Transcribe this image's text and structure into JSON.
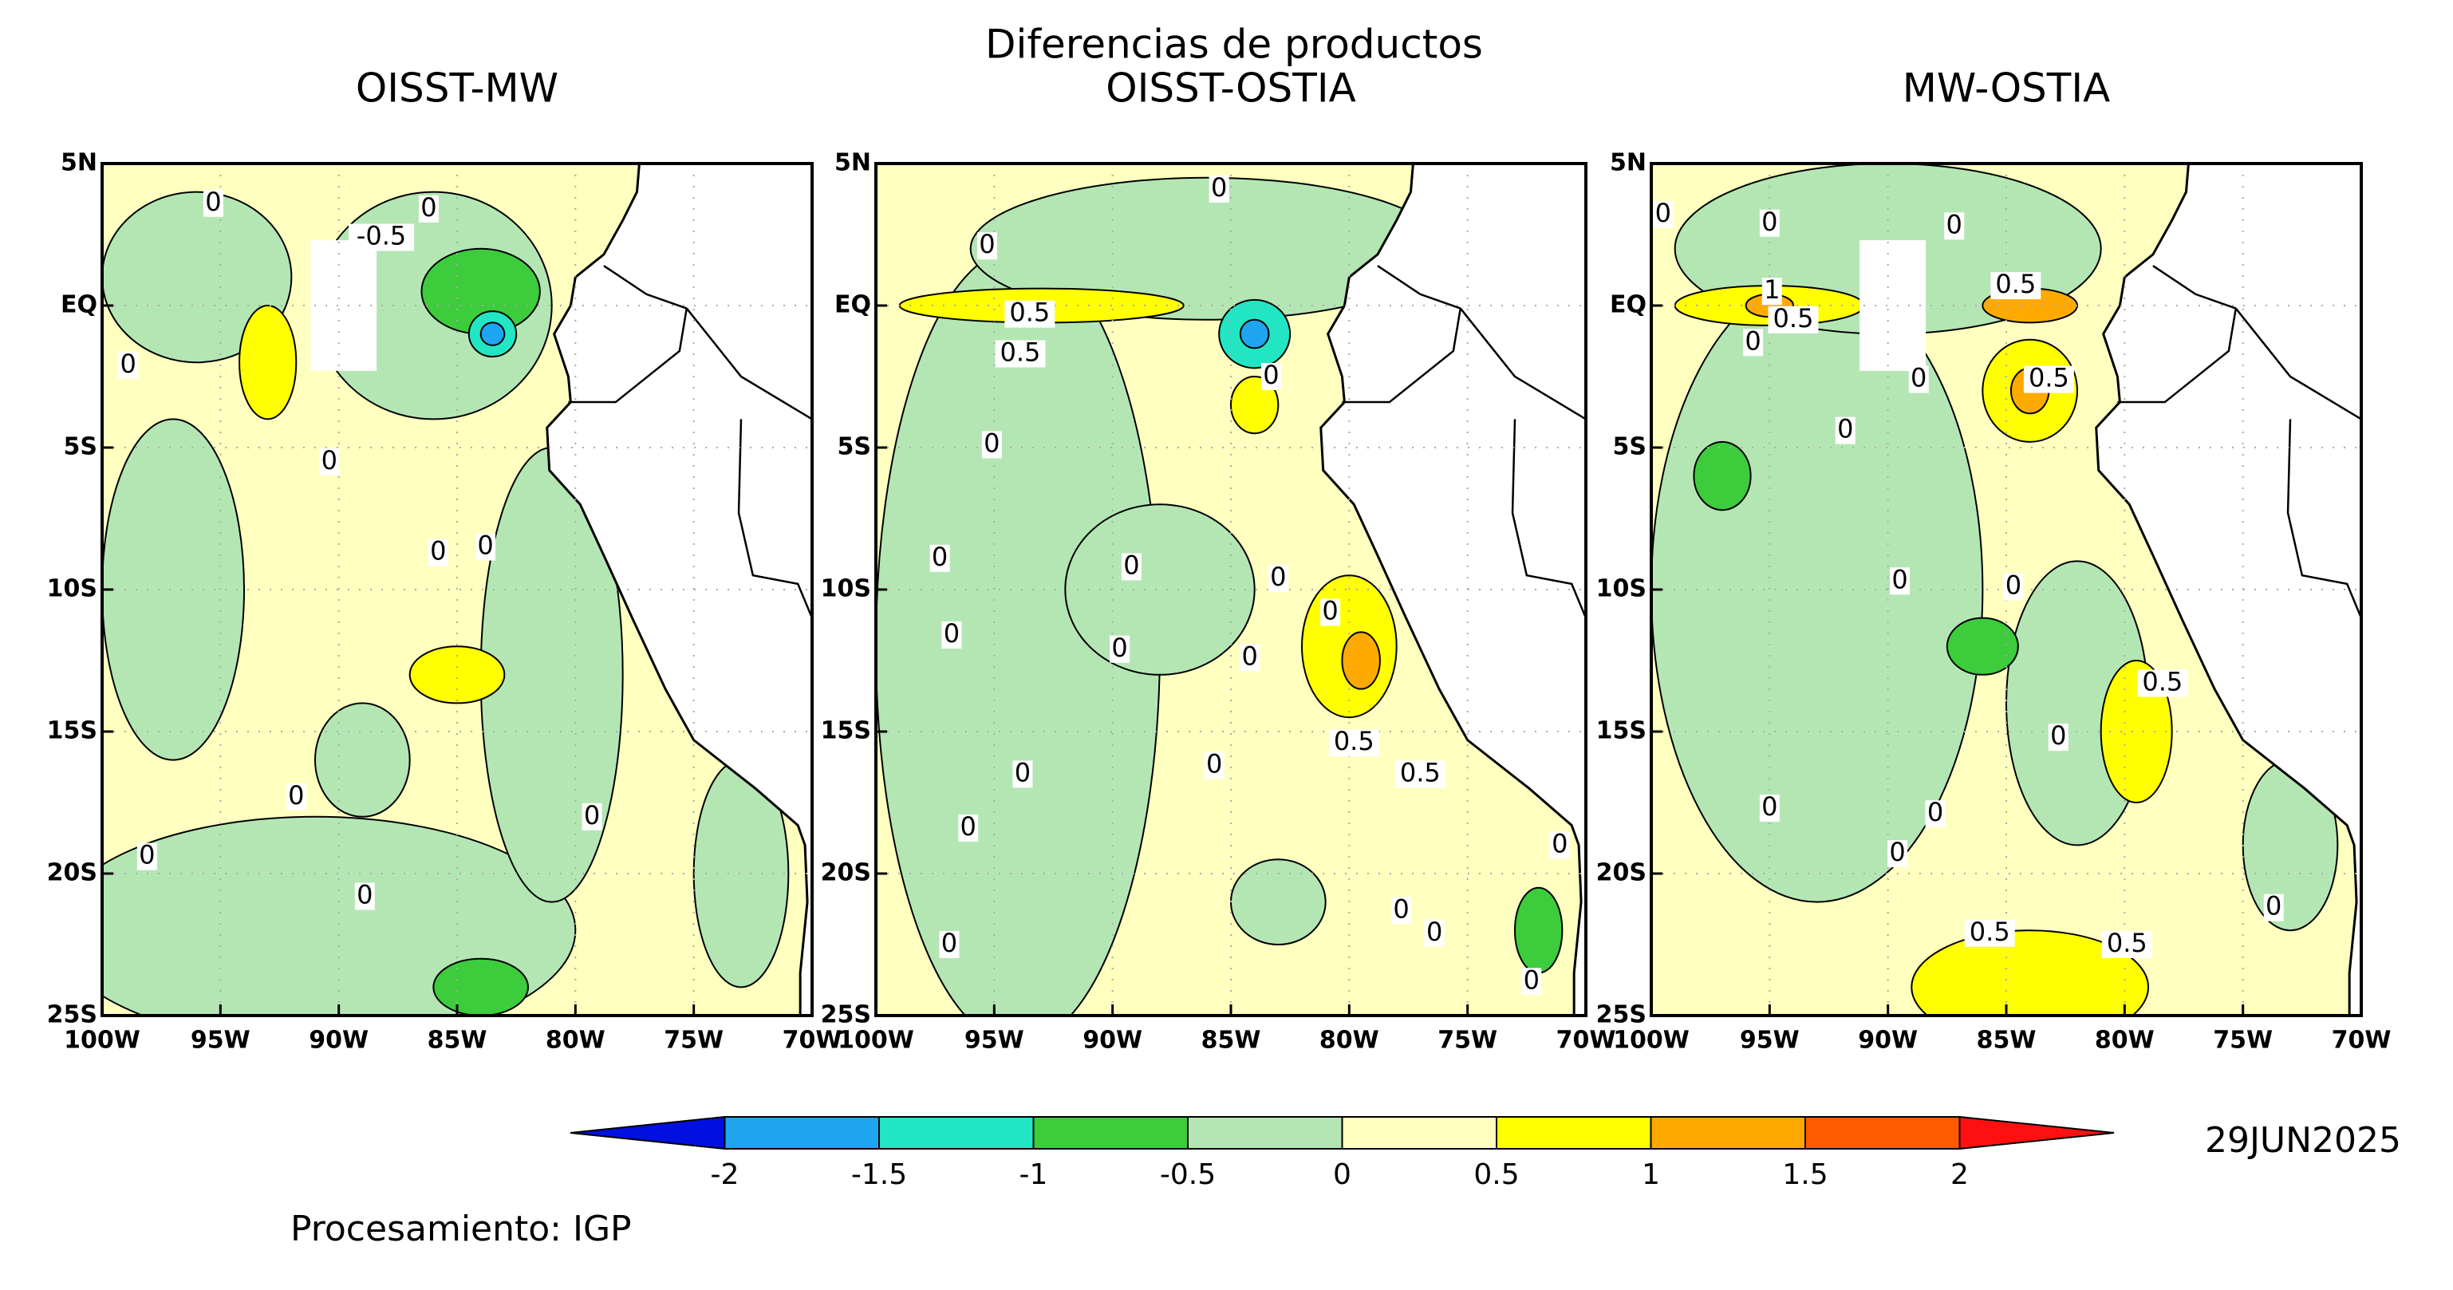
{
  "title": "Diferencias de productos",
  "panels": [
    {
      "title": "OISST-MW",
      "contour_labels": [
        "0",
        "0",
        "-0.5",
        "0",
        "0",
        "0",
        "0",
        "0",
        "0",
        "0",
        "0"
      ]
    },
    {
      "title": "OISST-OSTIA",
      "contour_labels": [
        "0",
        "0",
        "0.5",
        "0.5",
        "0",
        "0",
        "0",
        "0",
        "0",
        "0",
        "0",
        "0",
        "0",
        "0.5",
        "0.5",
        "0",
        "0",
        "0",
        "0",
        "0",
        "0",
        "0",
        "0"
      ]
    },
    {
      "title": "MW-OSTIA",
      "contour_labels": [
        "0",
        "0",
        "0",
        "0.5",
        "1",
        "0.5",
        "0",
        "0",
        "0.5",
        "0",
        "0",
        "0",
        "0.5",
        "0",
        "0",
        "0",
        "0",
        "0.5",
        "0.5",
        "0"
      ]
    }
  ],
  "lon_axis": {
    "lim": [
      -100,
      -70
    ],
    "ticks": [
      {
        "value": -100,
        "label": "100W"
      },
      {
        "value": -95,
        "label": "95W"
      },
      {
        "value": -90,
        "label": "90W"
      },
      {
        "value": -85,
        "label": "85W"
      },
      {
        "value": -80,
        "label": "80W"
      },
      {
        "value": -75,
        "label": "75W"
      },
      {
        "value": -70,
        "label": "70W"
      }
    ]
  },
  "lat_axis": {
    "lim": [
      -25,
      5
    ],
    "ticks": [
      {
        "value": 5,
        "label": "5N"
      },
      {
        "value": 0,
        "label": "EQ"
      },
      {
        "value": -5,
        "label": "5S"
      },
      {
        "value": -10,
        "label": "10S"
      },
      {
        "value": -15,
        "label": "15S"
      },
      {
        "value": -20,
        "label": "20S"
      },
      {
        "value": -25,
        "label": "25S"
      }
    ]
  },
  "colorbar": {
    "levels": [
      -2,
      -1.5,
      -1,
      -0.5,
      0,
      0.5,
      1,
      1.5,
      2
    ],
    "colors": [
      "#0010e0",
      "#1ea5f0",
      "#22e6c3",
      "#3ccc3c",
      "#b4e6b4",
      "#ffffc0",
      "#ffff00",
      "#ffaa00",
      "#ff5a00",
      "#ff1010"
    ]
  },
  "date": "29JUN2025",
  "credit": "Procesamiento: IGP"
}
